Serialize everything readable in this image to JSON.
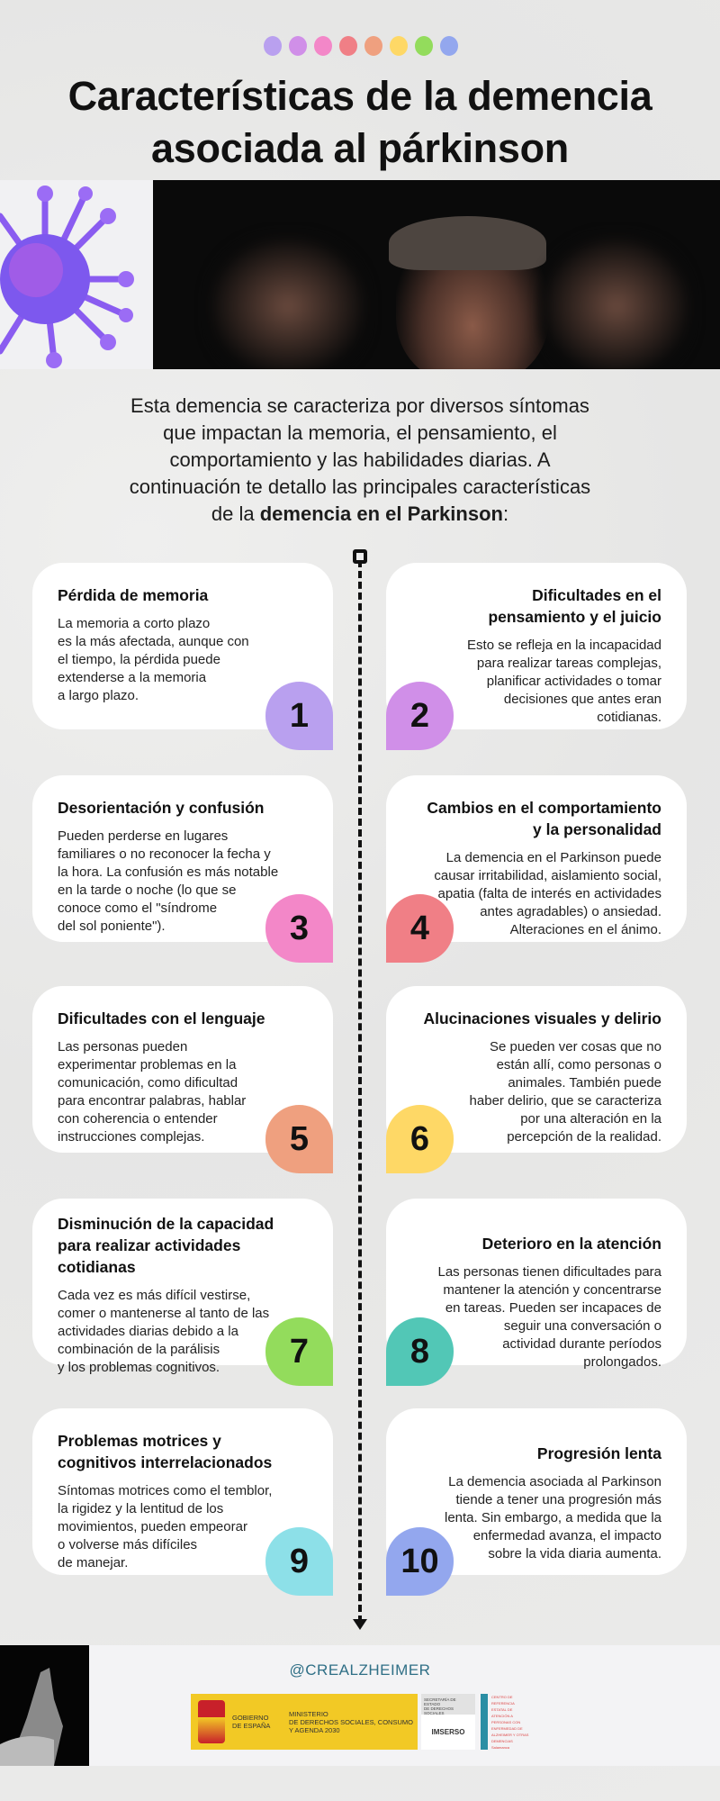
{
  "header_dots": [
    "#b9a0ef",
    "#d08fe8",
    "#f387c8",
    "#f07f86",
    "#efa07f",
    "#fed866",
    "#93dc5c",
    "#93a7ee"
  ],
  "title": {
    "line1": "Características de la demencia",
    "line2": "asociada al párkinson"
  },
  "intro": {
    "text": "Esta demencia se caracteriza por diversos síntomas\nque impactan la memoria, el pensamiento, el\ncomportamiento y las habilidades diarias. A\ncontinuación te detallo las principales características\nde la ",
    "bold": "demencia en el Parkinson",
    "end": ":"
  },
  "cards": [
    {
      "number": "1",
      "color": "#b9a0ef",
      "title": "Pérdida de memoria",
      "body": "La memoria a corto plazo\nes la más afectada, aunque con\nel tiempo, la pérdida puede\nextenderse a la memoria\na largo plazo."
    },
    {
      "number": "2",
      "color": "#d08fe8",
      "title": "Dificultades en el\npensamiento y el juicio",
      "body": "Esto se refleja en la incapacidad\npara realizar tareas complejas,\nplanificar actividades o tomar\ndecisiones que antes eran\ncotidianas."
    },
    {
      "number": "3",
      "color": "#f387c8",
      "title": "Desorientación y confusión",
      "body": "Pueden perderse en lugares\nfamiliares o no reconocer la fecha y\nla hora. La confusión es más notable\nen la tarde o noche (lo que se\nconoce como el \"síndrome\ndel sol poniente\")."
    },
    {
      "number": "4",
      "color": "#f07f86",
      "title": "Cambios en el comportamiento\ny la personalidad",
      "body": "La demencia en el Parkinson puede\ncausar irritabilidad,  aislamiento social,\napatia (falta de interés en actividades\nantes agradables) o ansiedad.\nAlteraciones en el ánimo."
    },
    {
      "number": "5",
      "color": "#efa07f",
      "title": "Dificultades con el lenguaje",
      "body": "Las personas pueden\nexperimentar problemas en la\ncomunicación, como dificultad\npara encontrar palabras, hablar\ncon coherencia o entender\ninstrucciones complejas."
    },
    {
      "number": "6",
      "color": "#fed866",
      "title": "Alucinaciones visuales y delirio",
      "body": "Se pueden ver cosas que no\nestán allí, como personas o\nanimales. También puede\nhaber delirio, que se caracteriza\npor una alteración en la\npercepción de la realidad."
    },
    {
      "number": "7",
      "color": "#93dc5c",
      "title": "Disminución de la capacidad\npara realizar actividades\ncotidianas",
      "body": "Cada vez es más difícil vestirse,\ncomer o mantenerse al tanto de las\nactividades diarias debido a la\ncombinación de la parálisis\ny los problemas cognitivos."
    },
    {
      "number": "8",
      "color": "#52c7b6",
      "title": "Deterioro en la atención",
      "body": "Las personas tienen dificultades para\nmantener la atención y concentrarse\nen tareas. Pueden ser incapaces de\nseguir una conversación o\nactividad durante períodos\nprolongados."
    },
    {
      "number": "9",
      "color": "#8de0e8",
      "title": "Problemas motrices y\ncognitivos interrelacionados",
      "body": "Síntomas motrices como el temblor,\nla rigidez y la lentitud de los\nmovimientos, pueden empeorar\no volverse más difíciles\nde manejar."
    },
    {
      "number": "10",
      "color": "#93a7ee",
      "title": "Progresión lenta",
      "body": "La demencia asociada al Parkinson\ntiende a tener una progresión más\nlenta. Sin embargo, a medida que la\nenfermedad avanza, el impacto\nsobre la vida diaria aumenta."
    }
  ],
  "footer": {
    "handle": "@CREALZHEIMER",
    "gobierno": "GOBIERNO\nDE ESPAÑA",
    "ministerio": "MINISTERIO\nDE DERECHOS SOCIALES, CONSUMO\nY AGENDA 2030",
    "secretaria": "SECRETARÍA DE ESTADO\nDE DERECHOS SOCIALES",
    "imserso": "IMSERSO",
    "crea": "CENTRO DE REFERENCIA ESTATAL DE ATENCIÓN A PERSONAS CON ENFERMEDAD DE ALZHEIMER Y OTRAS DEMENCIAS Salamanca"
  }
}
